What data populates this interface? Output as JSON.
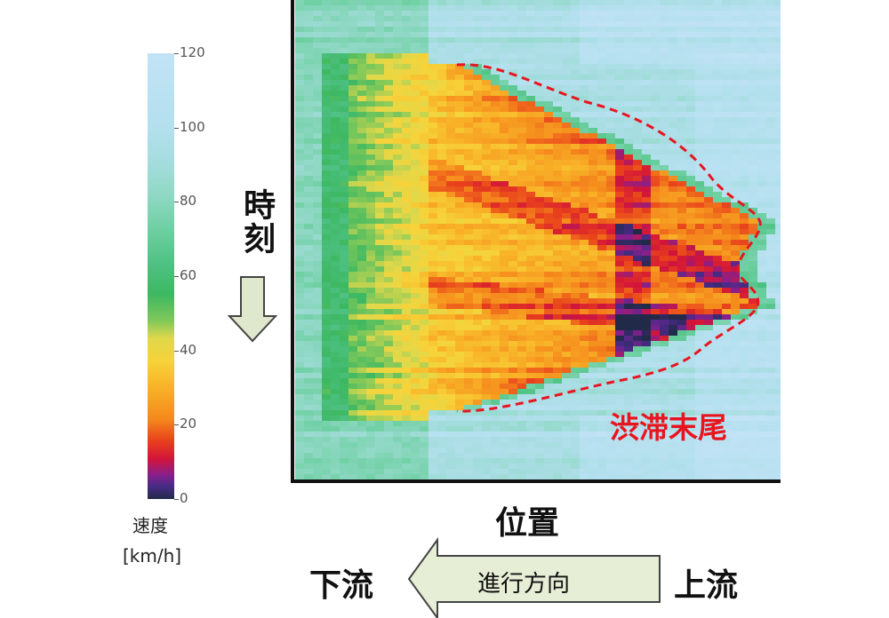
{
  "chart_data": {
    "type": "heatmap",
    "title": "",
    "xlabel": "位置",
    "ylabel": "時刻",
    "colorbar": {
      "label_lines": [
        "速度",
        "[km/h]"
      ],
      "ticks": [
        0,
        20,
        40,
        60,
        80,
        100,
        120
      ],
      "range": [
        0,
        120
      ]
    },
    "annotation": "渋滞末尾",
    "speed_scale": [
      {
        "v": 0,
        "color": "#222a4a"
      },
      {
        "v": 4,
        "color": "#4a2a88"
      },
      {
        "v": 7,
        "color": "#8a1f8a"
      },
      {
        "v": 11,
        "color": "#d2143a"
      },
      {
        "v": 16,
        "color": "#e8401c"
      },
      {
        "v": 22,
        "color": "#f58a1c"
      },
      {
        "v": 30,
        "color": "#f8b228"
      },
      {
        "v": 37,
        "color": "#f7d33a"
      },
      {
        "v": 43,
        "color": "#e0d84a"
      },
      {
        "v": 48,
        "color": "#7fc85a"
      },
      {
        "v": 55,
        "color": "#3db862"
      },
      {
        "v": 62,
        "color": "#4cc080"
      },
      {
        "v": 72,
        "color": "#6ccfa0"
      },
      {
        "v": 82,
        "color": "#8fd8c4"
      },
      {
        "v": 92,
        "color": "#a6dde0"
      },
      {
        "v": 102,
        "color": "#b4e0ee"
      },
      {
        "v": 120,
        "color": "#c2e3f6"
      }
    ]
  },
  "labels": {
    "time": "時刻",
    "position": "位置",
    "downstream": "下流",
    "upstream": "上流",
    "direction": "進行方向",
    "congestion_tail": "渋滞末尾"
  },
  "colors": {
    "dashed_outline": "#e8151f",
    "arrow_fill": "#e6efd6",
    "arrow_stroke": "#444444"
  }
}
